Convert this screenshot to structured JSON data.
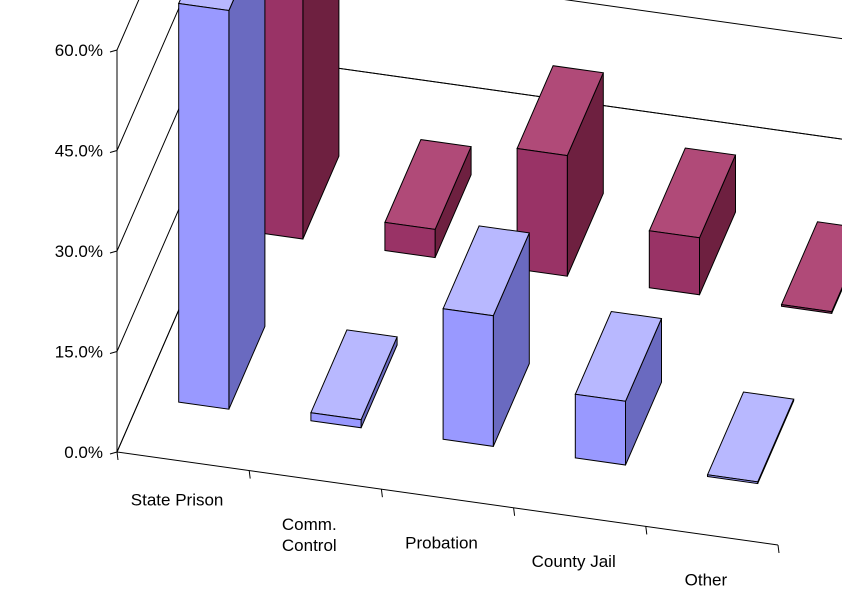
{
  "chart_data": {
    "type": "bar",
    "style": "3d-clustered-column",
    "categories": [
      "State Prison",
      "Comm.\nControl",
      "Probation",
      "County Jail",
      "Other"
    ],
    "series": [
      {
        "values": [
          59.5,
          1.2,
          19.5,
          9.5,
          0.0
        ]
      },
      {
        "values": [
          55.5,
          4.2,
          18.0,
          8.5,
          0.0
        ]
      }
    ],
    "y_ticks": [
      "0.0%",
      "15.0%",
      "30.0%",
      "45.0%",
      "60.0%"
    ],
    "ylim": [
      0,
      60
    ],
    "grid": true,
    "legend": "none",
    "colors": {
      "series_front": [
        "#9999ff",
        "#993366"
      ],
      "series_side": [
        "#6a6ac0",
        "#6e2040"
      ],
      "series_top": [
        "#b8b8ff",
        "#b04a78"
      ],
      "grid": "#000000"
    }
  }
}
